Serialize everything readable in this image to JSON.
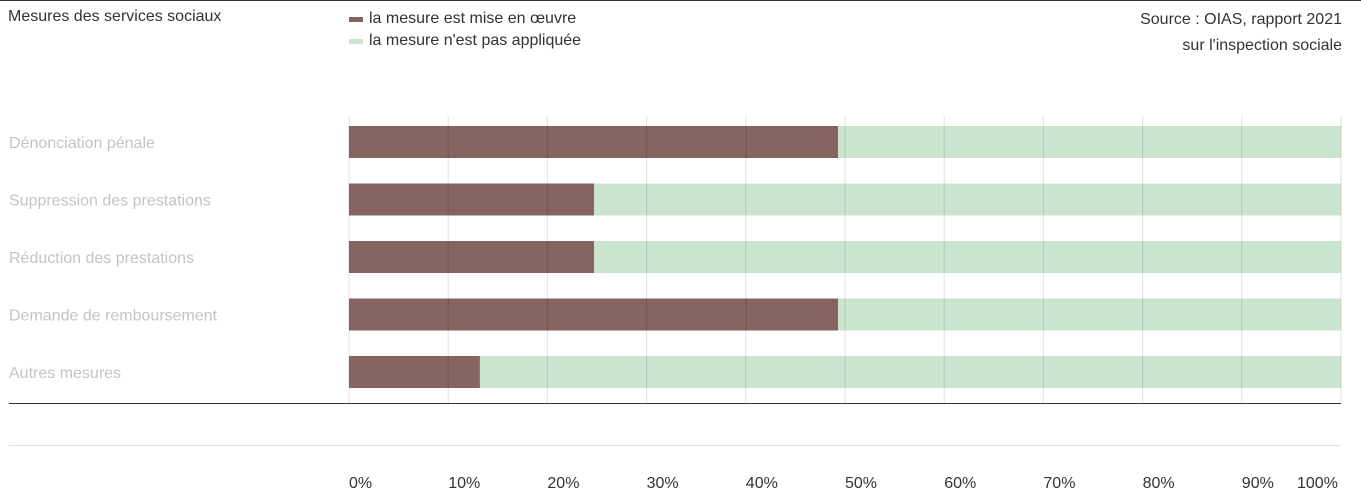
{
  "chart_data": {
    "type": "bar",
    "orientation": "horizontal",
    "stacked": true,
    "title": "Mesures des services sociaux",
    "source": [
      "Source : OIAS, rapport 2021",
      "sur l'inspection sociale"
    ],
    "categories": [
      "Dénonciation pénale",
      "Suppression des prestations",
      "Réduction des prestations",
      "Demande de remboursement",
      "Autres mesures"
    ],
    "series": [
      {
        "name": "la mesure est mise en œuvre",
        "color": "#866460",
        "values": [
          49.3,
          24.7,
          24.7,
          49.3,
          13.2
        ]
      },
      {
        "name": "la mesure n'est pas appliquée",
        "color": "#cae4d0",
        "values": [
          50.7,
          75.3,
          75.3,
          50.7,
          86.8
        ]
      }
    ],
    "xlim": [
      0,
      100
    ],
    "xticks": [
      "0%",
      "10%",
      "20%",
      "30%",
      "40%",
      "50%",
      "60%",
      "70%",
      "80%",
      "90%",
      "100%"
    ],
    "grid": true,
    "legend_position": "top"
  }
}
